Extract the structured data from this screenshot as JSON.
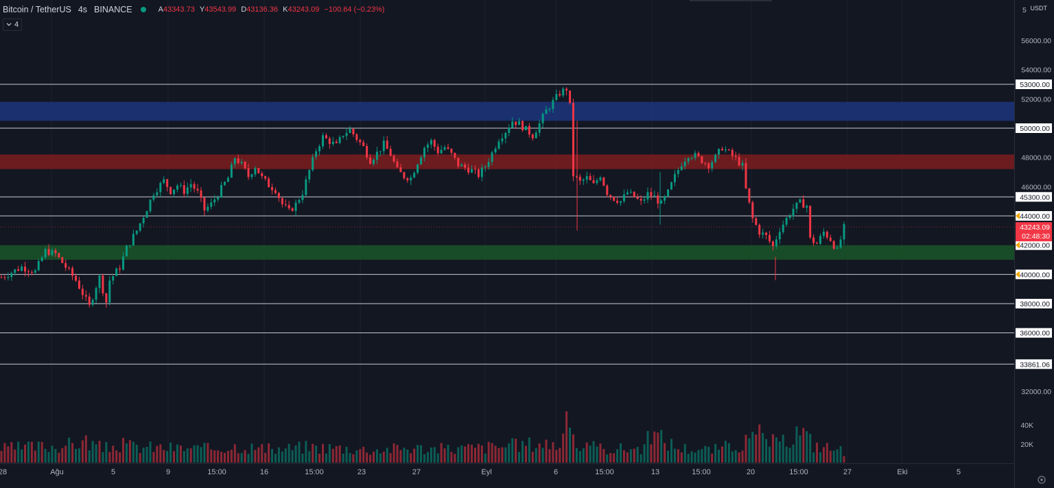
{
  "header": {
    "symbol": "Bitcoin / TetherUS",
    "interval": "4s",
    "exchange": "BINANCE",
    "open_label": "A",
    "open": "43343.73",
    "high_label": "Y",
    "high": "43543.99",
    "low_label": "D",
    "low": "43136.36",
    "close_label": "K",
    "close": "43243.09",
    "change": "−100.64 (−0.23%)"
  },
  "indicator_toggle": {
    "label": "4",
    "icon": "chevron-down-icon"
  },
  "price_scale": {
    "currency": "USDT",
    "axis_ticks": [
      "56000.00",
      "54000.00",
      "52000.00",
      "46000.00",
      "32000.00"
    ],
    "top_partial": "5"
  },
  "levels": [
    "53000.00",
    "50000.00",
    "45300.00",
    "44000.00",
    "40000.00",
    "38000.00",
    "36000.00",
    "33861.06"
  ],
  "zone_labels": [
    "48000.00",
    "42000.00"
  ],
  "alert_levels": [
    "44000.00",
    "42000.00",
    "40000.00"
  ],
  "current_price": {
    "value": "43243.09",
    "countdown": "02:48:30"
  },
  "volume_axis": [
    "40K",
    "20K"
  ],
  "time_axis": [
    "28",
    "Ağu",
    "5",
    "9",
    "15:00",
    "16",
    "15:00",
    "23",
    "27",
    "Eyl",
    "6",
    "15:00",
    "13",
    "15:00",
    "20",
    "15:00",
    "27",
    "Eki",
    "5"
  ],
  "colors": {
    "background": "#131722",
    "up": "#089981",
    "down": "#f23645",
    "blue_zone": "#1e3a8a",
    "red_zone": "#8b1e1e",
    "green_zone": "#1b5e2a",
    "level_line": "#c9ccd4",
    "grid": "#1e222d"
  },
  "chart_data": {
    "type": "candlestick",
    "y_range": [
      31000,
      57000
    ],
    "lines": [
      53000,
      50000,
      45300,
      44000,
      40000,
      38000,
      36000,
      33861.06
    ],
    "zones": [
      {
        "from": 50500,
        "to": 51800,
        "color": "blue"
      },
      {
        "from": 47200,
        "to": 48200,
        "color": "red"
      },
      {
        "from": 41000,
        "to": 42000,
        "color": "green"
      }
    ],
    "close_path": [
      [
        0,
        39800
      ],
      [
        6,
        40500
      ],
      [
        10,
        40200
      ],
      [
        13,
        41600
      ],
      [
        16,
        41400
      ],
      [
        19,
        40500
      ],
      [
        22,
        39600
      ],
      [
        24,
        38700
      ],
      [
        26,
        37800
      ],
      [
        28,
        39200
      ],
      [
        29,
        39800
      ],
      [
        31,
        38100
      ],
      [
        32,
        39600
      ],
      [
        35,
        40500
      ],
      [
        37,
        41800
      ],
      [
        40,
        43000
      ],
      [
        43,
        44500
      ],
      [
        45,
        45600
      ],
      [
        48,
        46400
      ],
      [
        50,
        45700
      ],
      [
        52,
        46100
      ],
      [
        54,
        45700
      ],
      [
        56,
        46200
      ],
      [
        58,
        45600
      ],
      [
        60,
        44400
      ],
      [
        62,
        44800
      ],
      [
        64,
        45500
      ],
      [
        67,
        46600
      ],
      [
        69,
        48000
      ],
      [
        71,
        47500
      ],
      [
        73,
        46700
      ],
      [
        75,
        47400
      ],
      [
        77,
        46600
      ],
      [
        79,
        46100
      ],
      [
        81,
        45800
      ],
      [
        83,
        44800
      ],
      [
        85,
        44300
      ],
      [
        87,
        44800
      ],
      [
        89,
        45600
      ],
      [
        91,
        47100
      ],
      [
        93,
        48500
      ],
      [
        95,
        49400
      ],
      [
        97,
        49100
      ],
      [
        99,
        48800
      ],
      [
        101,
        49600
      ],
      [
        103,
        49900
      ],
      [
        105,
        49300
      ],
      [
        107,
        48700
      ],
      [
        109,
        47800
      ],
      [
        111,
        48300
      ],
      [
        113,
        48900
      ],
      [
        115,
        48200
      ],
      [
        117,
        47100
      ],
      [
        119,
        46700
      ],
      [
        121,
        46600
      ],
      [
        123,
        47700
      ],
      [
        125,
        48700
      ],
      [
        127,
        49100
      ],
      [
        129,
        48400
      ],
      [
        131,
        48700
      ],
      [
        133,
        48200
      ],
      [
        135,
        47500
      ],
      [
        137,
        47300
      ],
      [
        139,
        47100
      ],
      [
        141,
        46800
      ],
      [
        143,
        47400
      ],
      [
        145,
        48300
      ],
      [
        147,
        49300
      ],
      [
        149,
        49800
      ],
      [
        151,
        50500
      ],
      [
        153,
        50300
      ],
      [
        155,
        49900
      ],
      [
        157,
        49500
      ],
      [
        159,
        50300
      ],
      [
        161,
        51200
      ],
      [
        163,
        51800
      ],
      [
        165,
        52400
      ],
      [
        167,
        52700
      ],
      [
        168,
        51500
      ],
      [
        169,
        46800
      ],
      [
        171,
        46300
      ],
      [
        173,
        46600
      ],
      [
        175,
        46100
      ],
      [
        177,
        46800
      ],
      [
        179,
        45600
      ],
      [
        181,
        45200
      ],
      [
        183,
        45000
      ],
      [
        185,
        45600
      ],
      [
        187,
        45300
      ],
      [
        189,
        44900
      ],
      [
        191,
        45500
      ],
      [
        193,
        45300
      ],
      [
        195,
        44800
      ],
      [
        197,
        45600
      ],
      [
        199,
        46700
      ],
      [
        201,
        47600
      ],
      [
        203,
        48200
      ],
      [
        205,
        48100
      ],
      [
        207,
        47800
      ],
      [
        209,
        47500
      ],
      [
        211,
        48000
      ],
      [
        213,
        48700
      ],
      [
        215,
        48300
      ],
      [
        217,
        47900
      ],
      [
        219,
        47400
      ],
      [
        220,
        45800
      ],
      [
        222,
        43800
      ],
      [
        224,
        42900
      ],
      [
        226,
        42600
      ],
      [
        228,
        41900
      ],
      [
        230,
        43100
      ],
      [
        232,
        43800
      ],
      [
        234,
        44500
      ],
      [
        236,
        44900
      ],
      [
        238,
        44700
      ],
      [
        239,
        42400
      ],
      [
        241,
        42100
      ],
      [
        243,
        42900
      ],
      [
        245,
        42400
      ],
      [
        247,
        41600
      ],
      [
        249,
        43200
      ]
    ],
    "volume_path": [
      [
        0,
        14
      ],
      [
        10,
        16
      ],
      [
        20,
        18
      ],
      [
        25,
        22
      ],
      [
        30,
        14
      ],
      [
        35,
        18
      ],
      [
        40,
        16
      ],
      [
        50,
        15
      ],
      [
        60,
        14
      ],
      [
        70,
        17
      ],
      [
        80,
        13
      ],
      [
        90,
        16
      ],
      [
        100,
        15
      ],
      [
        110,
        13
      ],
      [
        120,
        15
      ],
      [
        130,
        14
      ],
      [
        140,
        15
      ],
      [
        150,
        17
      ],
      [
        160,
        20
      ],
      [
        165,
        18
      ],
      [
        168,
        48
      ],
      [
        170,
        16
      ],
      [
        180,
        14
      ],
      [
        190,
        15
      ],
      [
        192,
        30
      ],
      [
        200,
        15
      ],
      [
        210,
        13
      ],
      [
        220,
        20
      ],
      [
        224,
        28
      ],
      [
        230,
        17
      ],
      [
        236,
        34
      ],
      [
        240,
        18
      ],
      [
        246,
        14
      ],
      [
        249,
        12
      ]
    ]
  }
}
